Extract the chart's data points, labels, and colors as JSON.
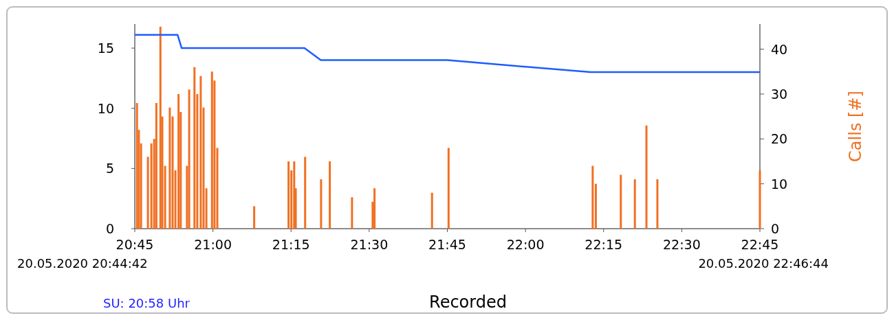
{
  "chart_data": {
    "type": "line",
    "xlabel": "Recorded",
    "y2label": "Calls [#]",
    "xlim": [
      20.75,
      22.75
    ],
    "xticks": [
      {
        "value": 20.75,
        "label": "20:45"
      },
      {
        "value": 21,
        "label": "21:00"
      },
      {
        "value": 21.25,
        "label": "21:15"
      },
      {
        "value": 21.5,
        "label": "21:30"
      },
      {
        "value": 21.75,
        "label": "21:45"
      },
      {
        "value": 22,
        "label": "22:00"
      },
      {
        "value": 22.25,
        "label": "22:15"
      },
      {
        "value": 22.5,
        "label": "22:30"
      },
      {
        "value": 22.75,
        "label": "22:45"
      }
    ],
    "ylim": [
      0,
      17
    ],
    "yticks": [
      0,
      5,
      10,
      15
    ],
    "y2lim": [
      0,
      45.6
    ],
    "y2ticks": [
      0,
      10,
      20,
      30,
      40
    ],
    "grid": false,
    "series": [
      {
        "color": "#1f5cff",
        "x": [
          20.75,
          20.887,
          20.9,
          21.293,
          21.345,
          21.75,
          22.208,
          22.75
        ],
        "values": [
          16.1,
          16.1,
          15,
          15,
          14,
          14,
          13,
          13
        ]
      },
      {
        "type": "bar",
        "axis": "y2",
        "color": "#f07022",
        "x": [
          20.757,
          20.763,
          20.77,
          20.792,
          20.803,
          20.812,
          20.819,
          20.832,
          20.838,
          20.847,
          20.862,
          20.871,
          20.88,
          20.89,
          20.897,
          20.917,
          20.924,
          20.941,
          20.95,
          20.961,
          20.97,
          20.979,
          20.997,
          21.005,
          21.014,
          21.132,
          21.242,
          21.251,
          21.26,
          21.265,
          21.295,
          21.346,
          21.374,
          21.445,
          21.511,
          21.517,
          21.701,
          21.754,
          22.215,
          22.225,
          22.305,
          22.35,
          22.387,
          22.422,
          22.75
        ],
        "values": [
          28,
          22,
          19,
          16,
          19,
          20,
          28,
          45,
          25,
          14,
          27,
          25,
          13,
          30,
          26,
          14,
          31,
          36,
          30,
          34,
          27,
          9,
          35,
          33,
          18,
          5,
          15,
          13,
          15,
          9,
          16,
          11,
          15,
          7,
          6,
          9,
          8,
          18,
          14,
          10,
          12,
          11,
          23,
          11,
          13
        ]
      }
    ],
    "annotations": [
      "20.05.2020 20:44:42",
      "20.05.2020 22:46:44",
      "SU: 20:58 Uhr"
    ]
  }
}
